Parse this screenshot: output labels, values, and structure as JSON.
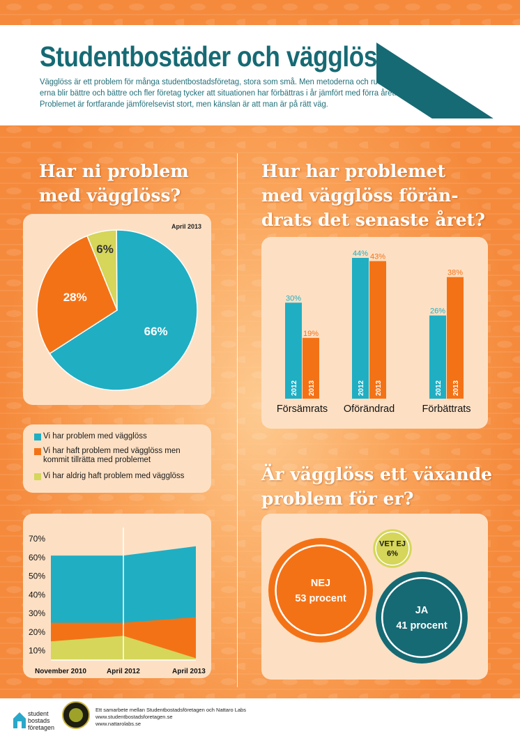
{
  "header": {
    "title": "Studentbostäder och vägglöss",
    "intro_lines": [
      "Vägglöss är ett problem för många studentbostadsföretag, stora som små. Men metoderna och rutin-",
      "erna blir bättre och bättre och fler företag tycker att situationen har förbättras i år jämfört med förra året.",
      "Problemet är fortfarande jämförelsevist stort, men känslan är att man är på rätt väg."
    ],
    "year": "2013"
  },
  "colors": {
    "teal": "#20aec3",
    "orange": "#f47216",
    "lime": "#d5d65a",
    "dark_teal": "#166a74",
    "panel": "#fde0c4"
  },
  "sections": {
    "problem_heading_lines": [
      "Har ni problem",
      "med vägglöss?"
    ],
    "change_heading_lines": [
      "Hur har problemet",
      "med vägglöss förän-",
      "drats det senaste året?"
    ],
    "growing_heading_lines": [
      "Är vägglöss ett växande",
      "problem för er?"
    ]
  },
  "chart_data": [
    {
      "type": "pie",
      "date_label": "April 2013",
      "slices": [
        {
          "label": "Vi har problem med vägglöss",
          "value": 66,
          "value_label": "66%",
          "color": "#20aec3"
        },
        {
          "label": "Vi har haft problem med vägglöss men kommit tillrätta med problemet",
          "value": 28,
          "value_label": "28%",
          "color": "#f47216"
        },
        {
          "label": "Vi har aldrig haft problem med vägglöss",
          "value": 6,
          "value_label": "6%",
          "color": "#d5d65a"
        }
      ],
      "legend": [
        {
          "lines": [
            "Vi har problem med vägglöss"
          ],
          "color": "#20aec3"
        },
        {
          "lines": [
            "Vi har haft problem med vägglöss men",
            "kommit tillrätta med problemet"
          ],
          "color": "#f47216"
        },
        {
          "lines": [
            "Vi har aldrig haft problem med vägglöss"
          ],
          "color": "#d5d65a"
        }
      ]
    },
    {
      "type": "area",
      "x": [
        "November 2010",
        "April 2012",
        "April 2013"
      ],
      "yticks": [
        "10%",
        "20%",
        "30%",
        "40%",
        "50%",
        "60%",
        "70%"
      ],
      "ylim": [
        5,
        73
      ],
      "series": [
        {
          "values": [
            15,
            18,
            6
          ],
          "color": "#d5d65a"
        },
        {
          "values": [
            25,
            25,
            28
          ],
          "color": "#f47216"
        },
        {
          "values": [
            61,
            61,
            66
          ],
          "color": "#20aec3"
        }
      ]
    },
    {
      "type": "bar",
      "categories": [
        "Försämrats",
        "Oförändrad",
        "Förbättrats"
      ],
      "series": [
        {
          "name": "2012",
          "values": [
            30,
            44,
            26
          ],
          "labels": [
            "30%",
            "44%",
            "26%"
          ],
          "color": "#20aec3"
        },
        {
          "name": "2013",
          "values": [
            19,
            43,
            38
          ],
          "labels": [
            "19%",
            "43%",
            "38%"
          ],
          "color": "#f47216"
        }
      ],
      "ylim": [
        0,
        44
      ]
    },
    {
      "type": "bubble",
      "items": [
        {
          "label": "NEJ",
          "sub": "53 procent",
          "value": 53,
          "color": "#f47216"
        },
        {
          "label": "JA",
          "sub": "41 procent",
          "value": 41,
          "color": "#166a74"
        },
        {
          "label": "VET EJ",
          "sub": "6%",
          "value": 6,
          "color": "#d5d65a"
        }
      ]
    }
  ],
  "footer": {
    "logo_lines": [
      "student",
      "bostads",
      "företagen"
    ],
    "credit_lines": [
      "Ett samarbete mellan Studentbostadsföretagen och Nattaro Labs",
      "www.studentbostadsforetagen.se",
      "www.nattarolabs.se"
    ]
  }
}
